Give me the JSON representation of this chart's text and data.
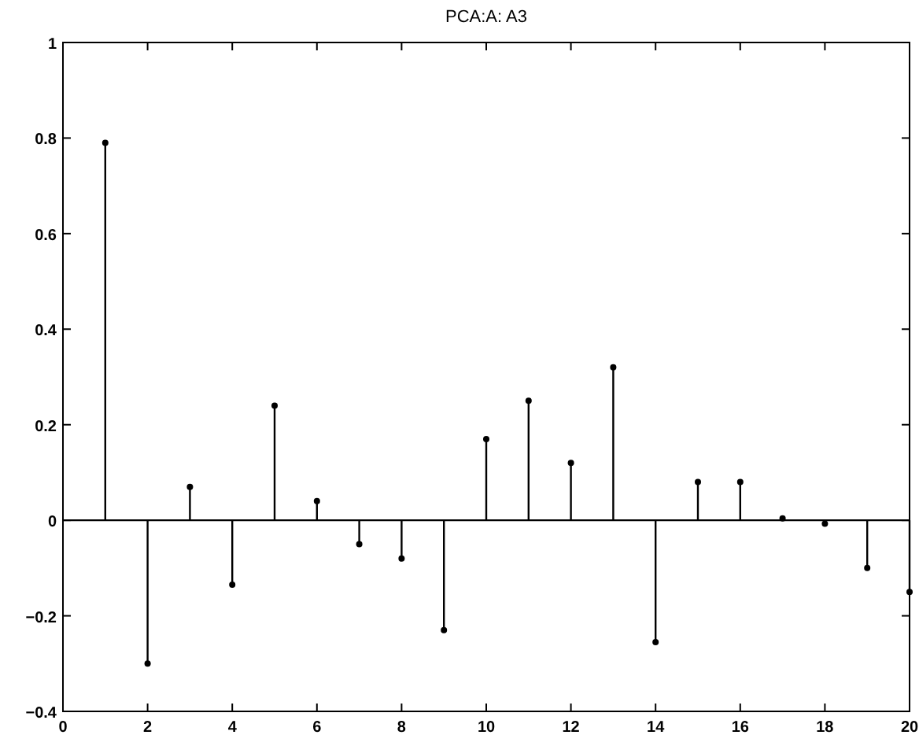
{
  "chart_data": {
    "type": "lollipop",
    "title": "PCA:A: A3",
    "x": [
      1,
      2,
      3,
      4,
      5,
      6,
      7,
      8,
      9,
      10,
      11,
      12,
      13,
      14,
      15,
      16,
      17,
      18,
      19,
      20
    ],
    "values": [
      0.79,
      -0.3,
      0.07,
      -0.135,
      0.24,
      0.04,
      -0.05,
      -0.08,
      -0.23,
      0.17,
      0.25,
      0.12,
      0.32,
      -0.255,
      0.08,
      0.08,
      0.004,
      -0.007,
      -0.1,
      -0.15
    ],
    "color": "#000000",
    "marker": "circle",
    "xlim": [
      0,
      20
    ],
    "xticks": [
      0,
      2,
      4,
      6,
      8,
      10,
      12,
      14,
      16,
      18,
      20
    ],
    "ylim": [
      -0.4,
      1
    ],
    "yticks": [
      -0.4,
      -0.2,
      0,
      0.2,
      0.4,
      0.6,
      0.8,
      1
    ]
  }
}
